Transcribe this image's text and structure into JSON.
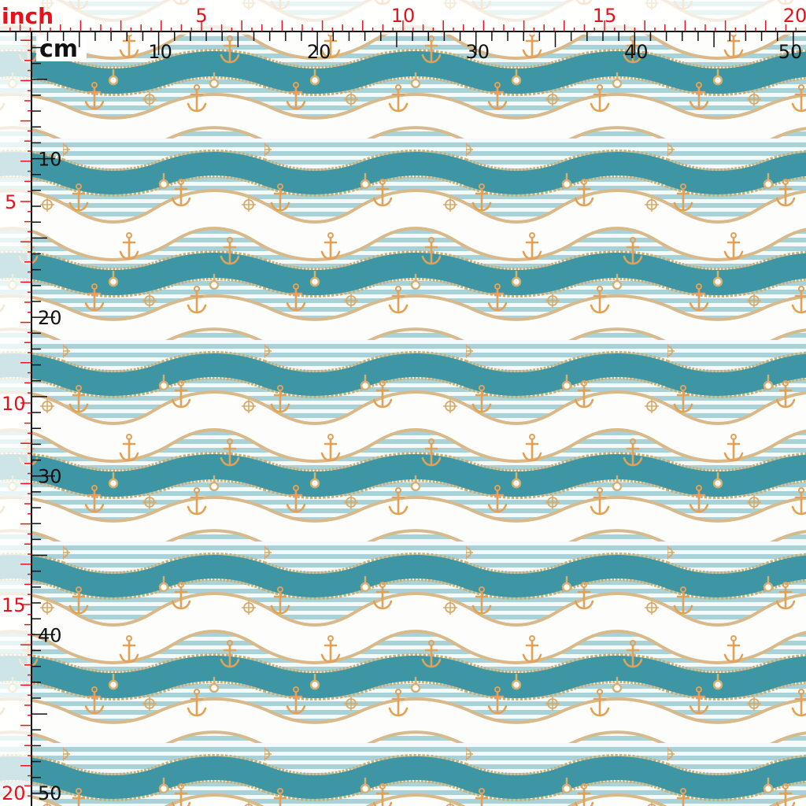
{
  "top_ruler": {
    "inch_unit": "inch",
    "inch_labels": [
      5,
      10,
      15,
      20
    ],
    "cm_unit": "cm",
    "cm_labels": [
      10,
      20,
      30,
      40,
      50
    ]
  },
  "left_ruler": {
    "cm_labels": [
      10,
      20,
      30,
      40,
      50
    ],
    "inch_labels": [
      5,
      10,
      15,
      20
    ]
  }
}
